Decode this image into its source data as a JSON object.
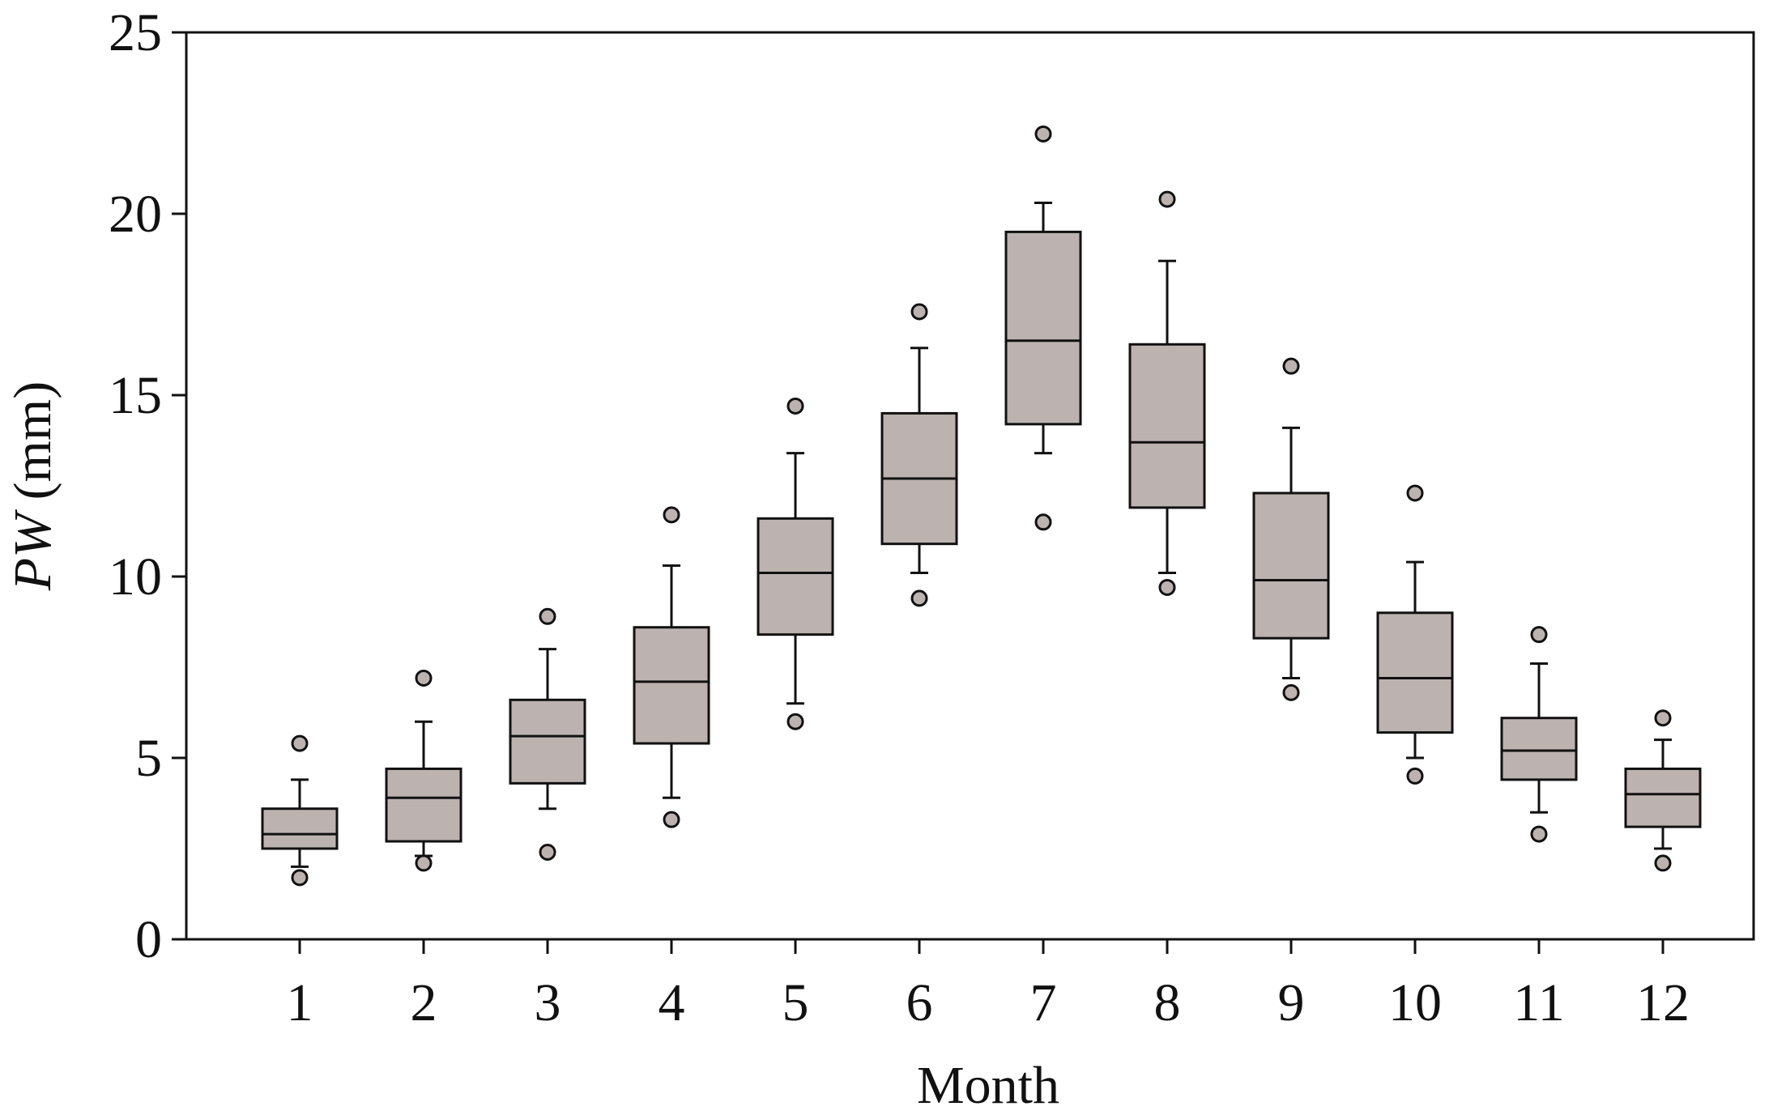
{
  "chart_data": {
    "type": "box",
    "xlabel": "Month",
    "ylabel_main": "PW",
    "ylabel_unit": " (mm)",
    "ylim": [
      0,
      25
    ],
    "yticks": [
      0,
      5,
      10,
      15,
      20,
      25
    ],
    "grid": false,
    "legend": "none",
    "colors": {
      "box_fill": "#bcb3b0",
      "line": "#111111"
    },
    "categories": [
      "1",
      "2",
      "3",
      "4",
      "5",
      "6",
      "7",
      "8",
      "9",
      "10",
      "11",
      "12"
    ],
    "boxes": [
      {
        "month": "1",
        "whisker_low": 2.0,
        "q1": 2.5,
        "median": 2.9,
        "q3": 3.6,
        "whisker_high": 4.4,
        "outliers": [
          1.7,
          5.4
        ]
      },
      {
        "month": "2",
        "whisker_low": 2.3,
        "q1": 2.7,
        "median": 3.9,
        "q3": 4.7,
        "whisker_high": 6.0,
        "outliers": [
          2.1,
          7.2
        ]
      },
      {
        "month": "3",
        "whisker_low": 3.6,
        "q1": 4.3,
        "median": 5.6,
        "q3": 6.6,
        "whisker_high": 8.0,
        "outliers": [
          2.4,
          8.9
        ]
      },
      {
        "month": "4",
        "whisker_low": 3.9,
        "q1": 5.4,
        "median": 7.1,
        "q3": 8.6,
        "whisker_high": 10.3,
        "outliers": [
          3.3,
          11.7
        ]
      },
      {
        "month": "5",
        "whisker_low": 6.5,
        "q1": 8.4,
        "median": 10.1,
        "q3": 11.6,
        "whisker_high": 13.4,
        "outliers": [
          6.0,
          14.7
        ]
      },
      {
        "month": "6",
        "whisker_low": 10.1,
        "q1": 10.9,
        "median": 12.7,
        "q3": 14.5,
        "whisker_high": 16.3,
        "outliers": [
          9.4,
          17.3
        ]
      },
      {
        "month": "7",
        "whisker_low": 13.4,
        "q1": 14.2,
        "median": 16.5,
        "q3": 19.5,
        "whisker_high": 20.3,
        "outliers": [
          11.5,
          22.2
        ]
      },
      {
        "month": "8",
        "whisker_low": 10.1,
        "q1": 11.9,
        "median": 13.7,
        "q3": 16.4,
        "whisker_high": 18.7,
        "outliers": [
          9.7,
          20.4
        ]
      },
      {
        "month": "9",
        "whisker_low": 7.2,
        "q1": 8.3,
        "median": 9.9,
        "q3": 12.3,
        "whisker_high": 14.1,
        "outliers": [
          6.8,
          15.8
        ]
      },
      {
        "month": "10",
        "whisker_low": 5.0,
        "q1": 5.7,
        "median": 7.2,
        "q3": 9.0,
        "whisker_high": 10.4,
        "outliers": [
          4.5,
          12.3
        ]
      },
      {
        "month": "11",
        "whisker_low": 3.5,
        "q1": 4.4,
        "median": 5.2,
        "q3": 6.1,
        "whisker_high": 7.6,
        "outliers": [
          2.9,
          8.4
        ]
      },
      {
        "month": "12",
        "whisker_low": 2.5,
        "q1": 3.1,
        "median": 4.0,
        "q3": 4.7,
        "whisker_high": 5.5,
        "outliers": [
          2.1,
          6.1
        ]
      }
    ]
  }
}
